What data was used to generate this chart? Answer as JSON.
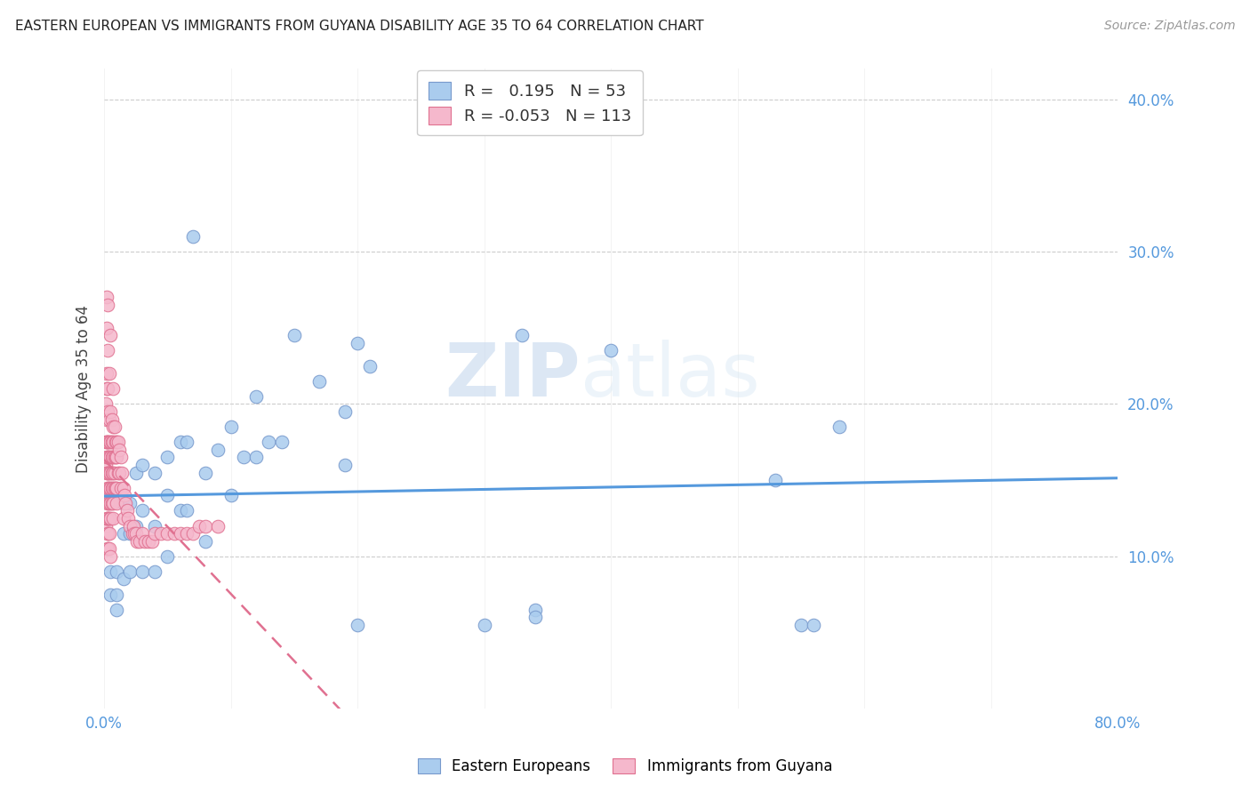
{
  "title": "EASTERN EUROPEAN VS IMMIGRANTS FROM GUYANA DISABILITY AGE 35 TO 64 CORRELATION CHART",
  "source": "Source: ZipAtlas.com",
  "ylabel": "Disability Age 35 to 64",
  "xlim": [
    0.0,
    0.8
  ],
  "ylim": [
    0.0,
    0.42
  ],
  "xtick_vals": [
    0.0,
    0.1,
    0.2,
    0.3,
    0.4,
    0.5,
    0.6,
    0.7,
    0.8
  ],
  "xtick_show": [
    0.0,
    0.8
  ],
  "ytick_vals": [
    0.1,
    0.2,
    0.3,
    0.4
  ],
  "ytick_labels": [
    "10.0%",
    "20.0%",
    "30.0%",
    "40.0%"
  ],
  "blue_color": "#aaccee",
  "blue_edge": "#7799cc",
  "pink_color": "#f5b8cc",
  "pink_edge": "#e07090",
  "line_blue": "#5599dd",
  "line_pink": "#e07090",
  "legend_R_blue": "0.195",
  "legend_N_blue": "53",
  "legend_R_pink": "-0.053",
  "legend_N_pink": "113",
  "legend_label_blue": "Eastern Europeans",
  "legend_label_pink": "Immigrants from Guyana",
  "watermark_zip": "ZIP",
  "watermark_atlas": "atlas",
  "blue_x": [
    0.005,
    0.005,
    0.01,
    0.01,
    0.01,
    0.015,
    0.015,
    0.015,
    0.02,
    0.02,
    0.02,
    0.025,
    0.025,
    0.03,
    0.03,
    0.03,
    0.04,
    0.04,
    0.04,
    0.05,
    0.05,
    0.05,
    0.06,
    0.06,
    0.065,
    0.065,
    0.07,
    0.08,
    0.08,
    0.09,
    0.1,
    0.1,
    0.11,
    0.12,
    0.12,
    0.13,
    0.14,
    0.15,
    0.17,
    0.19,
    0.19,
    0.2,
    0.2,
    0.21,
    0.3,
    0.33,
    0.34,
    0.34,
    0.4,
    0.53,
    0.55,
    0.56,
    0.58
  ],
  "blue_y": [
    0.09,
    0.075,
    0.09,
    0.075,
    0.065,
    0.135,
    0.115,
    0.085,
    0.135,
    0.115,
    0.09,
    0.155,
    0.12,
    0.16,
    0.13,
    0.09,
    0.155,
    0.12,
    0.09,
    0.165,
    0.14,
    0.1,
    0.175,
    0.13,
    0.175,
    0.13,
    0.31,
    0.155,
    0.11,
    0.17,
    0.185,
    0.14,
    0.165,
    0.205,
    0.165,
    0.175,
    0.175,
    0.245,
    0.215,
    0.16,
    0.195,
    0.055,
    0.24,
    0.225,
    0.055,
    0.245,
    0.065,
    0.06,
    0.235,
    0.15,
    0.055,
    0.055,
    0.185
  ],
  "pink_x": [
    0.001,
    0.001,
    0.001,
    0.001,
    0.001,
    0.002,
    0.002,
    0.002,
    0.002,
    0.002,
    0.002,
    0.002,
    0.002,
    0.002,
    0.002,
    0.003,
    0.003,
    0.003,
    0.003,
    0.003,
    0.003,
    0.003,
    0.003,
    0.003,
    0.003,
    0.003,
    0.003,
    0.003,
    0.003,
    0.003,
    0.003,
    0.003,
    0.003,
    0.003,
    0.003,
    0.004,
    0.004,
    0.004,
    0.004,
    0.004,
    0.004,
    0.004,
    0.004,
    0.004,
    0.004,
    0.005,
    0.005,
    0.005,
    0.005,
    0.005,
    0.005,
    0.005,
    0.005,
    0.005,
    0.006,
    0.006,
    0.006,
    0.006,
    0.006,
    0.006,
    0.007,
    0.007,
    0.007,
    0.007,
    0.007,
    0.007,
    0.007,
    0.007,
    0.008,
    0.008,
    0.008,
    0.008,
    0.009,
    0.009,
    0.009,
    0.01,
    0.01,
    0.01,
    0.01,
    0.011,
    0.011,
    0.012,
    0.012,
    0.013,
    0.013,
    0.014,
    0.015,
    0.015,
    0.016,
    0.017,
    0.018,
    0.019,
    0.02,
    0.022,
    0.023,
    0.024,
    0.025,
    0.026,
    0.028,
    0.03,
    0.032,
    0.035,
    0.038,
    0.04,
    0.045,
    0.05,
    0.055,
    0.06,
    0.065,
    0.07,
    0.075,
    0.08,
    0.09
  ],
  "pink_y": [
    0.2,
    0.175,
    0.16,
    0.14,
    0.12,
    0.27,
    0.25,
    0.22,
    0.21,
    0.19,
    0.175,
    0.165,
    0.155,
    0.14,
    0.125,
    0.265,
    0.235,
    0.21,
    0.195,
    0.175,
    0.165,
    0.155,
    0.145,
    0.135,
    0.125,
    0.115,
    0.105,
    0.175,
    0.165,
    0.155,
    0.145,
    0.135,
    0.125,
    0.115,
    0.105,
    0.22,
    0.19,
    0.175,
    0.165,
    0.155,
    0.145,
    0.135,
    0.125,
    0.115,
    0.105,
    0.245,
    0.195,
    0.175,
    0.165,
    0.155,
    0.145,
    0.135,
    0.125,
    0.1,
    0.19,
    0.175,
    0.165,
    0.155,
    0.145,
    0.135,
    0.21,
    0.185,
    0.175,
    0.165,
    0.155,
    0.145,
    0.135,
    0.125,
    0.185,
    0.165,
    0.155,
    0.145,
    0.175,
    0.165,
    0.145,
    0.175,
    0.165,
    0.145,
    0.135,
    0.175,
    0.155,
    0.17,
    0.155,
    0.165,
    0.145,
    0.155,
    0.145,
    0.125,
    0.14,
    0.135,
    0.13,
    0.125,
    0.12,
    0.115,
    0.12,
    0.115,
    0.115,
    0.11,
    0.11,
    0.115,
    0.11,
    0.11,
    0.11,
    0.115,
    0.115,
    0.115,
    0.115,
    0.115,
    0.115,
    0.115,
    0.12,
    0.12,
    0.12
  ]
}
